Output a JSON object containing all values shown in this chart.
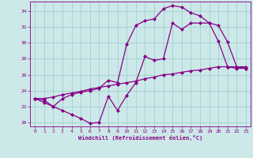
{
  "xlabel": "Windchill (Refroidissement éolien,°C)",
  "bg_color": "#cce8e8",
  "line_color": "#880088",
  "grid_color": "#99cccc",
  "xlim": [
    -0.5,
    23.5
  ],
  "ylim": [
    19.5,
    35.2
  ],
  "yticks": [
    20,
    22,
    24,
    26,
    28,
    30,
    32,
    34
  ],
  "xticks": [
    0,
    1,
    2,
    3,
    4,
    5,
    6,
    7,
    8,
    9,
    10,
    11,
    12,
    13,
    14,
    15,
    16,
    17,
    18,
    19,
    20,
    21,
    22,
    23
  ],
  "line1_x": [
    0,
    1,
    2,
    3,
    4,
    5,
    6,
    7,
    8,
    9,
    10,
    11,
    12,
    13,
    14,
    15,
    16,
    17,
    18,
    19,
    20,
    21,
    22,
    23
  ],
  "line1_y": [
    23.0,
    22.8,
    22.0,
    21.5,
    21.0,
    20.5,
    19.9,
    20.0,
    23.3,
    21.5,
    23.4,
    25.0,
    28.3,
    27.8,
    28.0,
    32.5,
    31.7,
    32.5,
    32.5,
    32.5,
    32.2,
    30.1,
    27.0,
    26.8
  ],
  "line2_x": [
    0,
    1,
    2,
    3,
    4,
    5,
    6,
    7,
    8,
    9,
    10,
    11,
    12,
    13,
    14,
    15,
    16,
    17,
    18,
    19,
    20,
    21,
    22,
    23
  ],
  "line2_y": [
    23.0,
    23.0,
    23.2,
    23.5,
    23.7,
    23.9,
    24.2,
    24.4,
    24.6,
    24.8,
    25.0,
    25.2,
    25.5,
    25.7,
    26.0,
    26.1,
    26.3,
    26.5,
    26.6,
    26.8,
    27.0,
    27.0,
    27.0,
    27.0
  ],
  "line3_x": [
    0,
    1,
    2,
    3,
    4,
    5,
    6,
    7,
    8,
    9,
    10,
    11,
    12,
    13,
    14,
    15,
    16,
    17,
    18,
    19,
    20,
    21,
    22,
    23
  ],
  "line3_y": [
    23.0,
    22.5,
    22.0,
    23.0,
    23.5,
    23.8,
    24.0,
    24.3,
    25.3,
    25.0,
    29.8,
    32.2,
    32.8,
    33.0,
    34.3,
    34.7,
    34.5,
    33.8,
    33.4,
    32.5,
    30.2,
    27.0,
    26.8,
    26.8
  ]
}
